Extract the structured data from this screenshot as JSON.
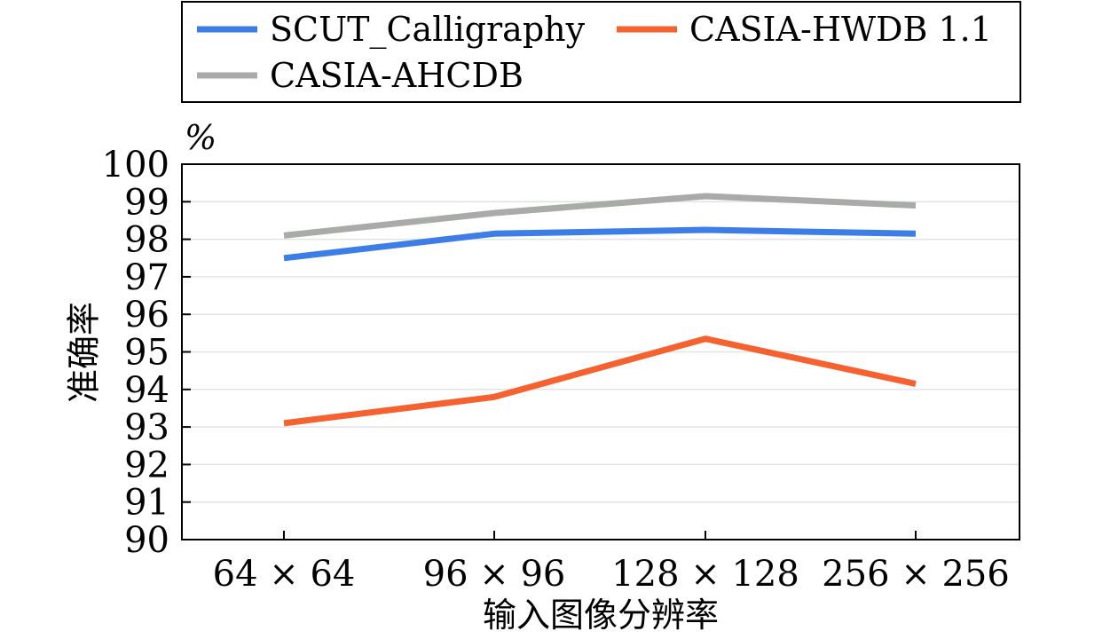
{
  "chart_data": {
    "type": "line",
    "categories": [
      "64 × 64",
      "96 × 96",
      "128 × 128",
      "256 × 256"
    ],
    "series": [
      {
        "name": "SCUT_Calligraphy",
        "values": [
          97.5,
          98.15,
          98.25,
          98.15
        ],
        "color": "#3d7ee6"
      },
      {
        "name": "CASIA-HWDB 1.1",
        "values": [
          93.1,
          93.8,
          95.35,
          94.15
        ],
        "color": "#f5612f"
      },
      {
        "name": "CASIA-AHCDB",
        "values": [
          98.1,
          98.7,
          99.15,
          98.9
        ],
        "color": "#a8aba8"
      }
    ],
    "xlabel": "输入图像分辨率",
    "ylabel": "准确率",
    "unit": "%",
    "ylim": [
      90,
      100
    ],
    "yticks": [
      "90",
      "91",
      "92",
      "93",
      "94",
      "95",
      "96",
      "97",
      "98",
      "99",
      "100"
    ],
    "grid": "horizontal",
    "legend": "top"
  }
}
